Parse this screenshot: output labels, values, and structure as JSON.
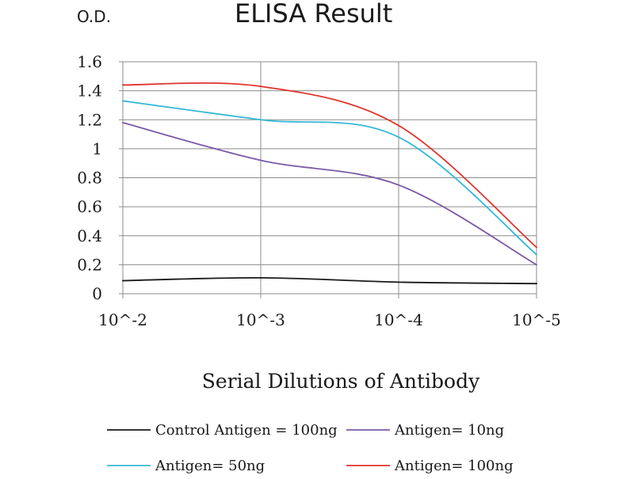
{
  "chart_data": {
    "type": "line",
    "title": "ELISA Result",
    "ylabel": "O.D.",
    "xlabel": "Serial Dilutions of Antibody",
    "categories": [
      "10^-2",
      "10^-3",
      "10^-4",
      "10^-5"
    ],
    "ylim": [
      0,
      1.6
    ],
    "yticks": [
      "0",
      "0.2",
      "0.4",
      "0.6",
      "0.8",
      "1",
      "1.2",
      "1.4",
      "1.6"
    ],
    "grid": true,
    "legend_position": "bottom",
    "series": [
      {
        "name": "Control Antigen = 100ng",
        "color": "#1a1a1a",
        "values": [
          0.09,
          0.11,
          0.08,
          0.07
        ]
      },
      {
        "name": "Antigen= 10ng",
        "color": "#7b5aa6",
        "values": [
          1.18,
          0.92,
          0.75,
          0.2
        ]
      },
      {
        "name": "Antigen= 50ng",
        "color": "#35b8d8",
        "values": [
          1.33,
          1.2,
          1.08,
          0.27
        ]
      },
      {
        "name": "Antigen= 100ng",
        "color": "#e0332e",
        "values": [
          1.44,
          1.43,
          1.16,
          0.32
        ]
      }
    ]
  }
}
